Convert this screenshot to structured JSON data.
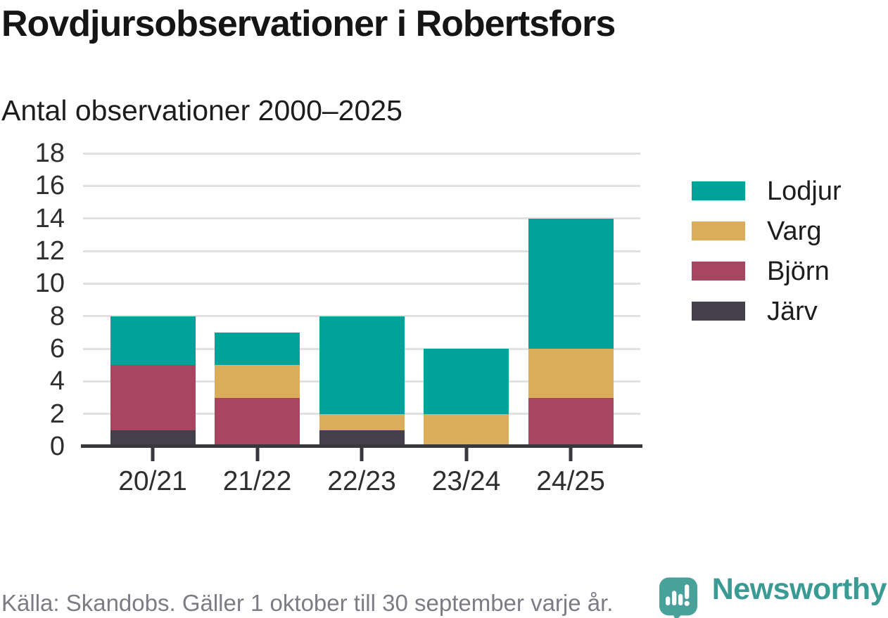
{
  "title": "Rovdjursobservationer i Robertsfors",
  "subtitle": "Antal observationer 2000–2025",
  "footer": {
    "source_note": "Källa: Skandobs. Gäller 1 oktober till 30 september varje år.",
    "brand": "Newsworthy"
  },
  "colors": {
    "lodjur": "#00a29a",
    "varg": "#dbad5b",
    "bjorn": "#a84560",
    "jarv": "#43404c",
    "axis": "#39383c",
    "gridline": "#e1e1e1",
    "brand_teal": "#3a9b95",
    "icon_teal": "#48a29b"
  },
  "chart_data": {
    "type": "bar",
    "stacked": true,
    "title": "Rovdjursobservationer i Robertsfors",
    "subtitle": "Antal observationer 2000–2025",
    "xlabel": "",
    "ylabel": "",
    "categories": [
      "20/21",
      "21/22",
      "22/23",
      "23/24",
      "24/25"
    ],
    "series": [
      {
        "name": "Järv",
        "color_key": "jarv",
        "values": [
          1,
          0,
          1,
          0,
          0
        ]
      },
      {
        "name": "Björn",
        "color_key": "bjorn",
        "values": [
          4,
          3,
          0,
          0,
          3
        ]
      },
      {
        "name": "Varg",
        "color_key": "varg",
        "values": [
          0,
          2,
          1,
          2,
          3
        ]
      },
      {
        "name": "Lodjur",
        "color_key": "lodjur",
        "values": [
          3,
          2,
          6,
          4,
          8
        ]
      }
    ],
    "totals": [
      8,
      7,
      8,
      6,
      14
    ],
    "ylim": [
      0,
      18
    ],
    "yticks": [
      0,
      2,
      4,
      6,
      8,
      10,
      12,
      14,
      16,
      18
    ],
    "grid": true,
    "legend_position": "right",
    "legend": [
      {
        "label": "Lodjur",
        "color_key": "lodjur"
      },
      {
        "label": "Varg",
        "color_key": "varg"
      },
      {
        "label": "Björn",
        "color_key": "bjorn"
      },
      {
        "label": "Järv",
        "color_key": "jarv"
      }
    ]
  }
}
